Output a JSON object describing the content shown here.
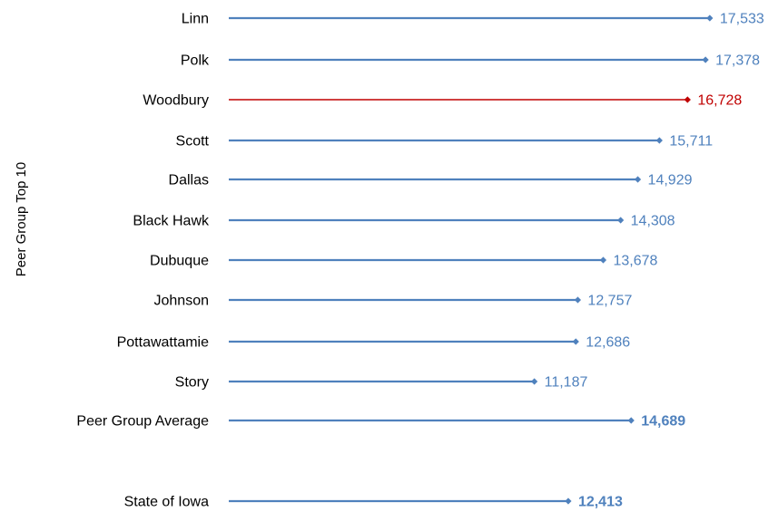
{
  "chart_data": {
    "type": "bar",
    "orientation": "horizontal",
    "style": "lollipop",
    "ylabel": "Peer Group Top 10",
    "xlabel": "",
    "grid": false,
    "colors": {
      "default": "#4F81BD",
      "highlight": "#C00000"
    },
    "categories": [
      "Linn",
      "Polk",
      "Woodbury",
      "Scott",
      "Dallas",
      "Black Hawk",
      "Dubuque",
      "Johnson",
      "Pottawattamie",
      "Story",
      "Peer Group Average",
      "State of Iowa"
    ],
    "value_labels": [
      "17,533",
      "17,378",
      "16,728",
      "15,711",
      "14,929",
      "14,308",
      "13,678",
      "12,757",
      "12,686",
      "11,187",
      "14,689",
      "12,413"
    ],
    "values": [
      17533,
      17378,
      16728,
      15711,
      14929,
      14308,
      13678,
      12757,
      12686,
      11187,
      14689,
      12413
    ],
    "highlight": [
      "Woodbury"
    ],
    "bold_labels": [
      "Peer Group Average",
      "State of Iowa"
    ]
  }
}
